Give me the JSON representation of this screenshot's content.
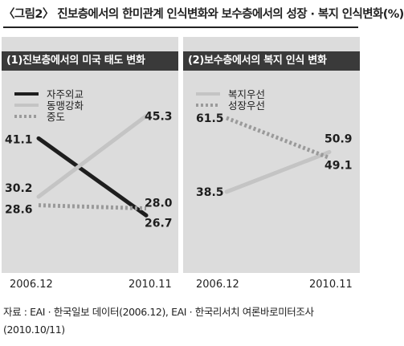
{
  "title": "〈그림2〉 진보층에서의 한미관계 인식변화와 보수층에서의 성장 · 복지 인식변화(%)",
  "source": "자료 : EAI · 한국일보 데이터(2006.12), EAI · 한국리서치 여론바로미터조사 (2010.10/11)",
  "colors": {
    "panel_bg": "#dcdcdc",
    "header_bg": "#3a3a3a",
    "dark": "#1e1e1e",
    "light": "#c4c4c4",
    "dotted": "#9a9a9a"
  },
  "chart_data": [
    {
      "type": "line",
      "title": "(1)진보층에서의 미국 태도 변화",
      "x": [
        "2006.12",
        "2010.11"
      ],
      "ylim": [
        20,
        50
      ],
      "grid": false,
      "legend_position": "top-left",
      "series": [
        {
          "name": "자주외교",
          "values": [
            41.1,
            26.7
          ],
          "labels": [
            "41.1",
            "26.7"
          ],
          "style": "dark"
        },
        {
          "name": "동맹강화",
          "values": [
            30.2,
            45.3
          ],
          "labels": [
            "30.2",
            "45.3"
          ],
          "style": "light"
        },
        {
          "name": "중도",
          "values": [
            28.6,
            28.0
          ],
          "labels": [
            "28.6",
            "28.0"
          ],
          "style": "dotted"
        }
      ]
    },
    {
      "type": "line",
      "title": "(2)보수층에서의 복지 인식 변화",
      "x": [
        "2006.12",
        "2010.11"
      ],
      "ylim": [
        20,
        70
      ],
      "grid": false,
      "legend_position": "top-left",
      "series": [
        {
          "name": "복지우선",
          "values": [
            38.5,
            50.9
          ],
          "labels": [
            "38.5",
            "50.9"
          ],
          "style": "light"
        },
        {
          "name": "성장우선",
          "values": [
            61.5,
            49.1
          ],
          "labels": [
            "61.5",
            "49.1"
          ],
          "style": "dotted"
        }
      ]
    }
  ]
}
